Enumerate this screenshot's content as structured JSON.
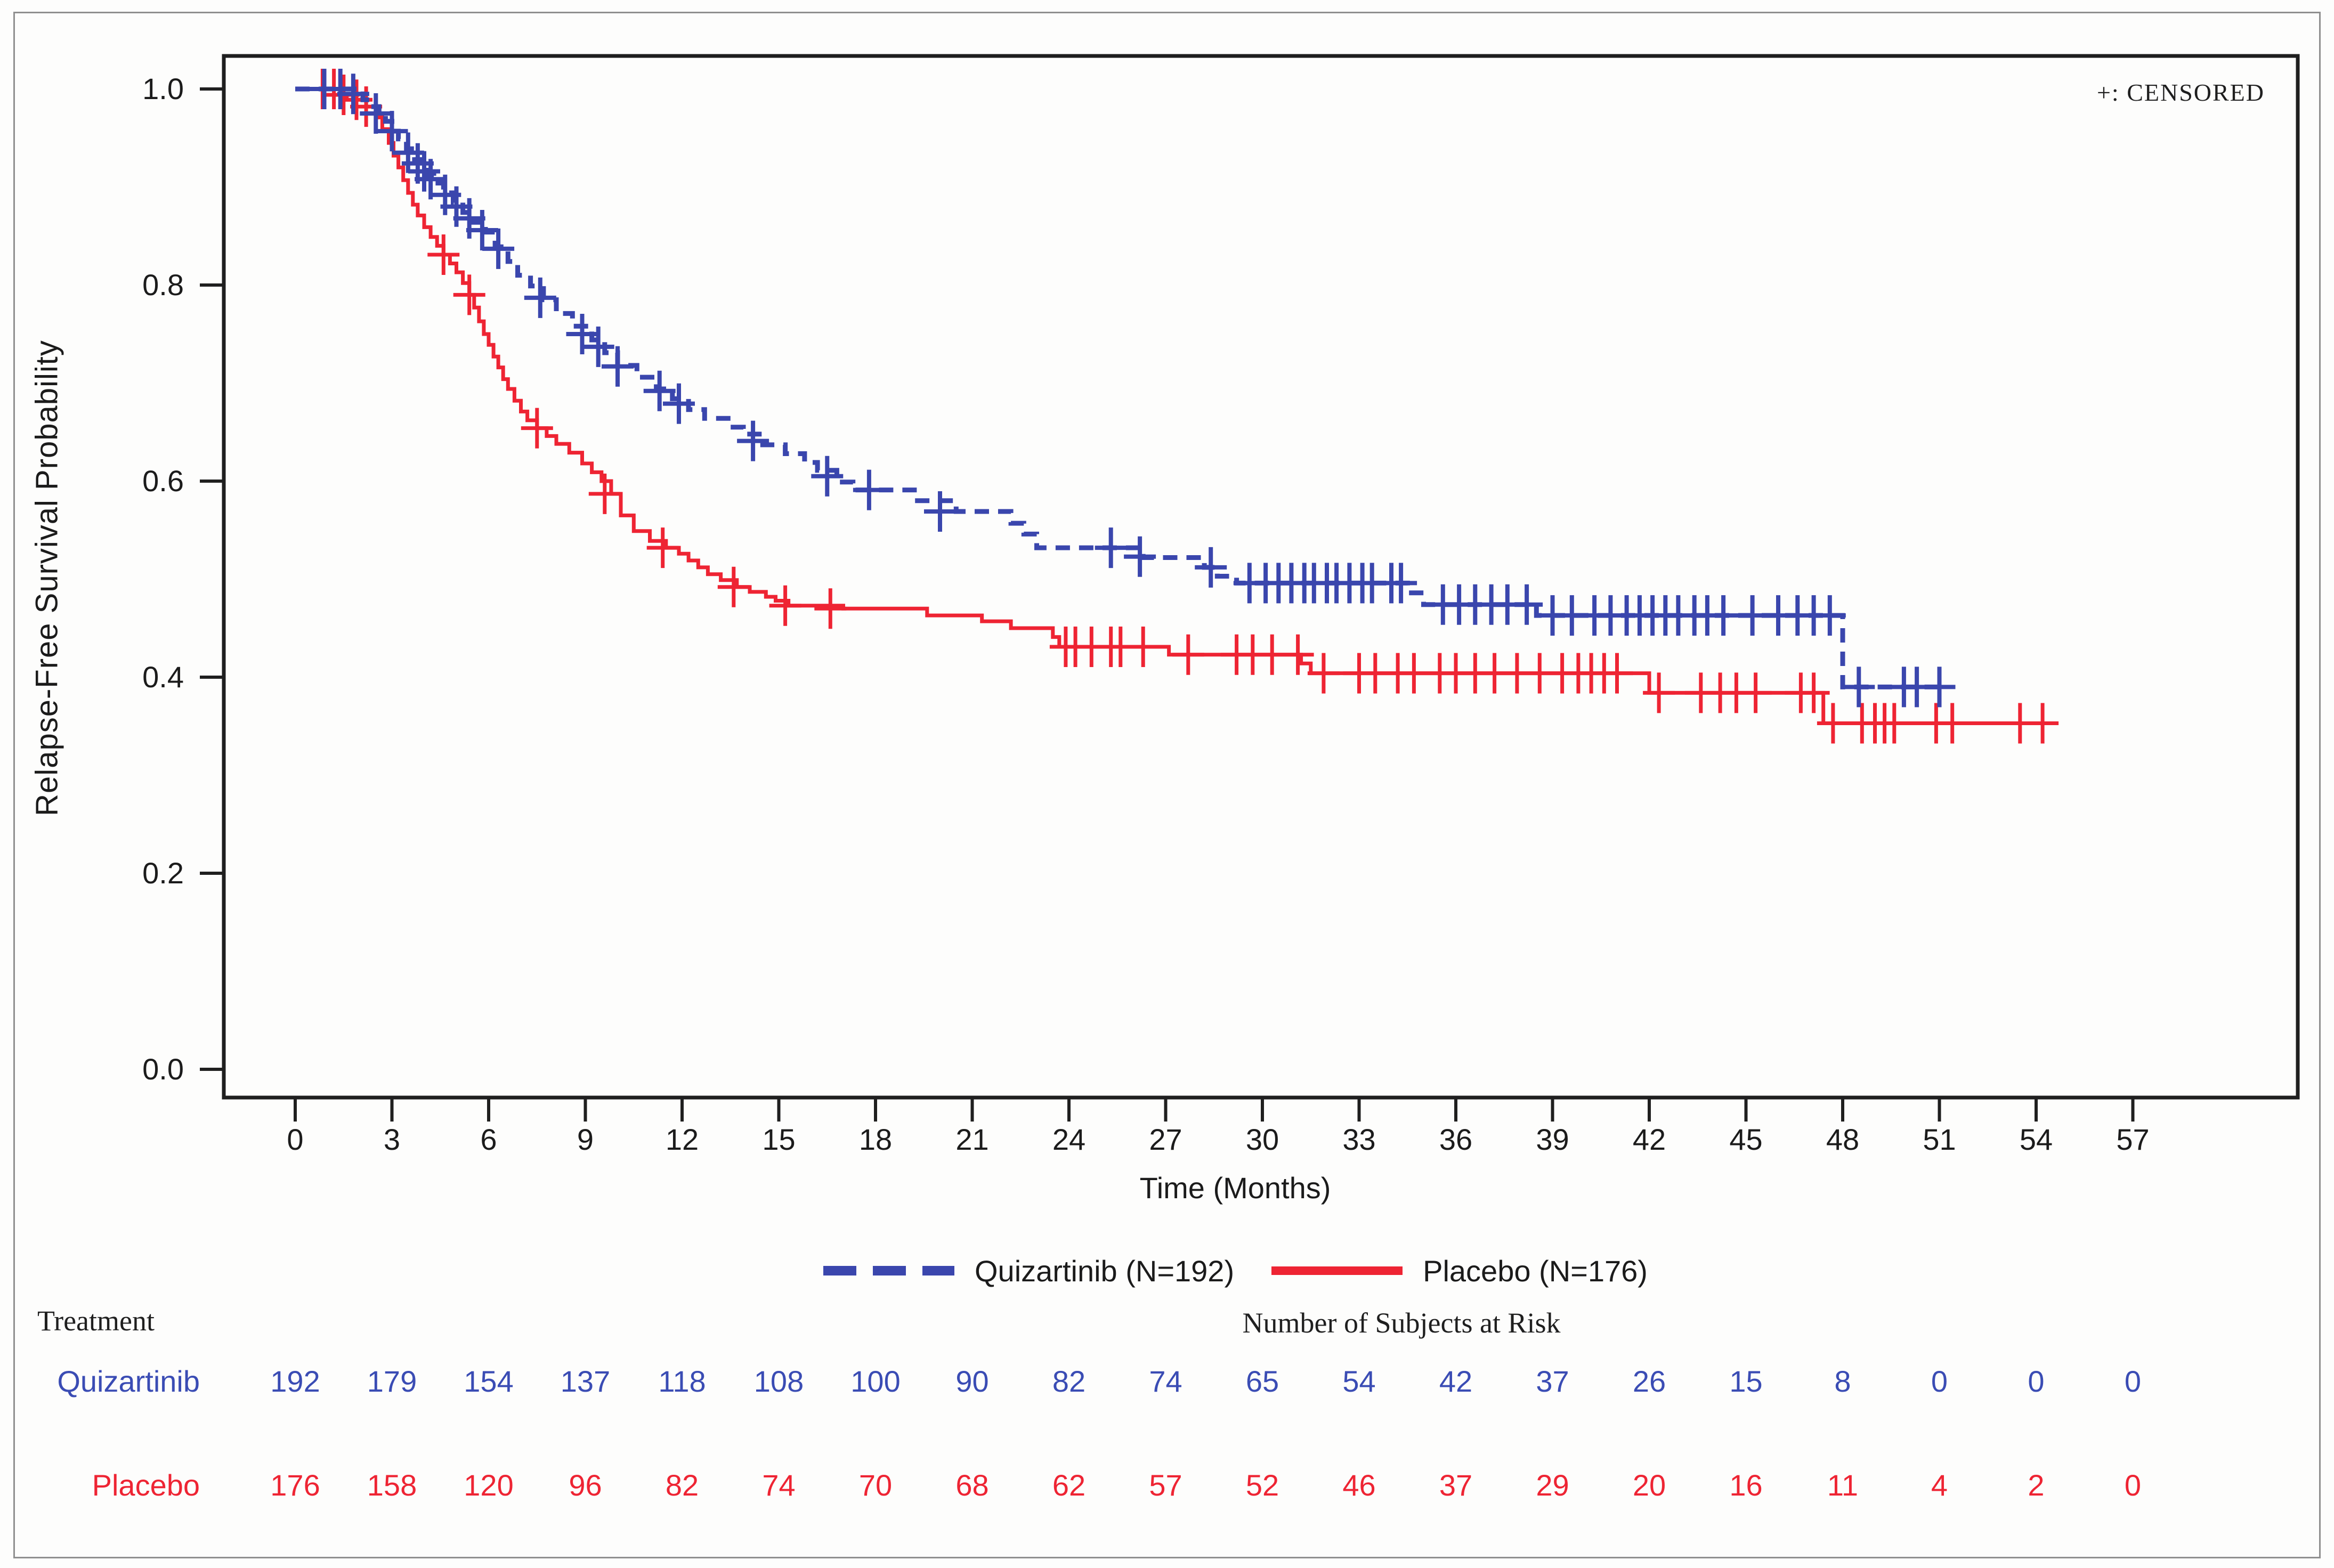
{
  "annotation": {
    "censored_note": "+: CENSORED"
  },
  "chart_data": {
    "type": "line",
    "subtype": "kaplan-meier-step-curves",
    "title": "",
    "xlabel": "Time (Months)",
    "ylabel": "Relapse-Free Survival Probability",
    "xlim": [
      0,
      57
    ],
    "ylim": [
      0.0,
      1.0
    ],
    "grid": false,
    "x_ticks": [
      0,
      3,
      6,
      9,
      12,
      15,
      18,
      21,
      24,
      27,
      30,
      33,
      36,
      39,
      42,
      45,
      48,
      51,
      54,
      57
    ],
    "y_tick_labels": [
      "1.0",
      "0.8",
      "0.6",
      "0.4",
      "0.2",
      "0.0"
    ],
    "y_tick_values": [
      1.0,
      0.8,
      0.6,
      0.4,
      0.2,
      0.0
    ],
    "legend_position": "bottom-center",
    "censored_marker": "+",
    "colors": {
      "quizartinib": "#3a46ad",
      "placebo": "#ee2433",
      "axis": "#1f1f1f"
    },
    "legend": [
      {
        "label": "Quizartinib (N=192)",
        "color": "#3a46ad",
        "dashed": true
      },
      {
        "label": "Placebo (N=176)",
        "color": "#ee2433",
        "dashed": false
      }
    ],
    "series": [
      {
        "name": "Quizartinib (N=192)",
        "n": 192,
        "color": "#3a46ad",
        "line_style": "dashed",
        "end_time": 51.2,
        "steps": [
          [
            0,
            1.0
          ],
          [
            1.9,
            0.995
          ],
          [
            2.1,
            0.989
          ],
          [
            2.35,
            0.982
          ],
          [
            2.6,
            0.975
          ],
          [
            2.8,
            0.967
          ],
          [
            3.0,
            0.957
          ],
          [
            3.2,
            0.949
          ],
          [
            3.45,
            0.939
          ],
          [
            3.7,
            0.928
          ],
          [
            3.9,
            0.92
          ],
          [
            4.1,
            0.912
          ],
          [
            4.3,
            0.904
          ],
          [
            4.6,
            0.894
          ],
          [
            4.9,
            0.884
          ],
          [
            5.2,
            0.874
          ],
          [
            5.5,
            0.864
          ],
          [
            5.9,
            0.854
          ],
          [
            6.2,
            0.839
          ],
          [
            6.6,
            0.824
          ],
          [
            6.9,
            0.81
          ],
          [
            7.3,
            0.799
          ],
          [
            7.7,
            0.785
          ],
          [
            8.1,
            0.771
          ],
          [
            8.6,
            0.758
          ],
          [
            9.2,
            0.744
          ],
          [
            9.6,
            0.731
          ],
          [
            10.0,
            0.718
          ],
          [
            10.6,
            0.706
          ],
          [
            11.2,
            0.694
          ],
          [
            11.7,
            0.684
          ],
          [
            12.2,
            0.673
          ],
          [
            12.7,
            0.664
          ],
          [
            13.5,
            0.655
          ],
          [
            13.9,
            0.648
          ],
          [
            14.5,
            0.637
          ],
          [
            15.2,
            0.628
          ],
          [
            15.8,
            0.619
          ],
          [
            16.2,
            0.611
          ],
          [
            16.8,
            0.599
          ],
          [
            17.3,
            0.591
          ],
          [
            19.3,
            0.58
          ],
          [
            20.5,
            0.569
          ],
          [
            22.2,
            0.557
          ],
          [
            22.6,
            0.546
          ],
          [
            23.0,
            0.532
          ],
          [
            26.3,
            0.522
          ],
          [
            28.2,
            0.512
          ],
          [
            28.6,
            0.503
          ],
          [
            29.2,
            0.496
          ],
          [
            34.5,
            0.486
          ],
          [
            35.0,
            0.474
          ],
          [
            38.5,
            0.463
          ],
          [
            48.0,
            0.39
          ]
        ],
        "censor_marks": [
          [
            0.9,
            1.0
          ],
          [
            1.4,
            1.0
          ],
          [
            1.8,
            0.995
          ],
          [
            2.5,
            0.975
          ],
          [
            3.0,
            0.957
          ],
          [
            3.5,
            0.935
          ],
          [
            3.8,
            0.924
          ],
          [
            4.0,
            0.916
          ],
          [
            4.2,
            0.908
          ],
          [
            4.65,
            0.892
          ],
          [
            5.0,
            0.88
          ],
          [
            5.4,
            0.868
          ],
          [
            5.8,
            0.856
          ],
          [
            6.3,
            0.837
          ],
          [
            7.6,
            0.787
          ],
          [
            8.9,
            0.75
          ],
          [
            9.4,
            0.737
          ],
          [
            10.0,
            0.717
          ],
          [
            11.3,
            0.692
          ],
          [
            11.9,
            0.679
          ],
          [
            14.2,
            0.641
          ],
          [
            16.5,
            0.605
          ],
          [
            17.8,
            0.591
          ],
          [
            20.0,
            0.569
          ],
          [
            25.3,
            0.532
          ],
          [
            26.2,
            0.523
          ],
          [
            28.4,
            0.512
          ],
          [
            29.6,
            0.496
          ],
          [
            30.1,
            0.496
          ],
          [
            30.5,
            0.496
          ],
          [
            30.9,
            0.496
          ],
          [
            31.3,
            0.496
          ],
          [
            31.6,
            0.496
          ],
          [
            32.0,
            0.496
          ],
          [
            32.3,
            0.496
          ],
          [
            32.7,
            0.496
          ],
          [
            33.1,
            0.496
          ],
          [
            33.4,
            0.496
          ],
          [
            34.0,
            0.496
          ],
          [
            34.3,
            0.496
          ],
          [
            35.6,
            0.474
          ],
          [
            36.1,
            0.474
          ],
          [
            36.6,
            0.474
          ],
          [
            37.1,
            0.474
          ],
          [
            37.6,
            0.474
          ],
          [
            38.2,
            0.474
          ],
          [
            39.0,
            0.463
          ],
          [
            39.6,
            0.463
          ],
          [
            40.3,
            0.463
          ],
          [
            40.8,
            0.463
          ],
          [
            41.3,
            0.463
          ],
          [
            41.7,
            0.463
          ],
          [
            42.1,
            0.463
          ],
          [
            42.5,
            0.463
          ],
          [
            42.9,
            0.463
          ],
          [
            43.4,
            0.463
          ],
          [
            43.8,
            0.463
          ],
          [
            44.3,
            0.463
          ],
          [
            45.2,
            0.463
          ],
          [
            46.0,
            0.463
          ],
          [
            46.6,
            0.463
          ],
          [
            47.1,
            0.463
          ],
          [
            47.6,
            0.463
          ],
          [
            48.5,
            0.39
          ],
          [
            49.9,
            0.39
          ],
          [
            50.3,
            0.39
          ],
          [
            51.0,
            0.39
          ]
        ]
      },
      {
        "name": "Placebo (N=176)",
        "n": 176,
        "color": "#ee2433",
        "line_style": "solid",
        "end_time": 54.3,
        "steps": [
          [
            0,
            1.0
          ],
          [
            0.9,
            0.994
          ],
          [
            1.6,
            0.989
          ],
          [
            2.2,
            0.982
          ],
          [
            2.5,
            0.971
          ],
          [
            2.7,
            0.959
          ],
          [
            2.9,
            0.945
          ],
          [
            3.05,
            0.932
          ],
          [
            3.2,
            0.92
          ],
          [
            3.35,
            0.907
          ],
          [
            3.5,
            0.894
          ],
          [
            3.65,
            0.882
          ],
          [
            3.8,
            0.871
          ],
          [
            4.0,
            0.859
          ],
          [
            4.2,
            0.849
          ],
          [
            4.4,
            0.84
          ],
          [
            4.6,
            0.831
          ],
          [
            4.8,
            0.822
          ],
          [
            5.0,
            0.813
          ],
          [
            5.2,
            0.802
          ],
          [
            5.4,
            0.79
          ],
          [
            5.55,
            0.777
          ],
          [
            5.7,
            0.763
          ],
          [
            5.85,
            0.75
          ],
          [
            6.0,
            0.739
          ],
          [
            6.15,
            0.727
          ],
          [
            6.3,
            0.716
          ],
          [
            6.45,
            0.704
          ],
          [
            6.6,
            0.694
          ],
          [
            6.8,
            0.682
          ],
          [
            7.0,
            0.671
          ],
          [
            7.2,
            0.662
          ],
          [
            7.5,
            0.654
          ],
          [
            7.8,
            0.646
          ],
          [
            8.1,
            0.638
          ],
          [
            8.5,
            0.629
          ],
          [
            8.9,
            0.618
          ],
          [
            9.2,
            0.609
          ],
          [
            9.5,
            0.6
          ],
          [
            9.8,
            0.587
          ],
          [
            10.1,
            0.565
          ],
          [
            10.5,
            0.549
          ],
          [
            11.0,
            0.539
          ],
          [
            11.5,
            0.532
          ],
          [
            11.9,
            0.526
          ],
          [
            12.2,
            0.519
          ],
          [
            12.5,
            0.512
          ],
          [
            12.8,
            0.505
          ],
          [
            13.2,
            0.499
          ],
          [
            13.7,
            0.492
          ],
          [
            14.1,
            0.487
          ],
          [
            14.6,
            0.482
          ],
          [
            14.9,
            0.478
          ],
          [
            15.3,
            0.473
          ],
          [
            17.0,
            0.47
          ],
          [
            19.6,
            0.463
          ],
          [
            21.3,
            0.457
          ],
          [
            22.2,
            0.45
          ],
          [
            23.5,
            0.441
          ],
          [
            23.7,
            0.431
          ],
          [
            27.1,
            0.423
          ],
          [
            31.2,
            0.414
          ],
          [
            31.5,
            0.404
          ],
          [
            42.0,
            0.384
          ],
          [
            47.4,
            0.353
          ]
        ],
        "censor_marks": [
          [
            0.85,
            1.0
          ],
          [
            1.2,
            1.0
          ],
          [
            1.5,
            0.994
          ],
          [
            1.9,
            0.989
          ],
          [
            2.2,
            0.982
          ],
          [
            4.6,
            0.831
          ],
          [
            5.4,
            0.79
          ],
          [
            7.5,
            0.654
          ],
          [
            9.6,
            0.587
          ],
          [
            11.4,
            0.532
          ],
          [
            13.6,
            0.492
          ],
          [
            15.2,
            0.473
          ],
          [
            16.6,
            0.47
          ],
          [
            23.9,
            0.431
          ],
          [
            24.2,
            0.431
          ],
          [
            24.7,
            0.431
          ],
          [
            25.3,
            0.431
          ],
          [
            25.6,
            0.431
          ],
          [
            26.3,
            0.431
          ],
          [
            27.7,
            0.423
          ],
          [
            29.2,
            0.423
          ],
          [
            29.7,
            0.423
          ],
          [
            30.3,
            0.423
          ],
          [
            31.1,
            0.423
          ],
          [
            31.9,
            0.404
          ],
          [
            33.0,
            0.404
          ],
          [
            33.5,
            0.404
          ],
          [
            34.2,
            0.404
          ],
          [
            34.7,
            0.404
          ],
          [
            35.5,
            0.404
          ],
          [
            36.0,
            0.404
          ],
          [
            36.6,
            0.404
          ],
          [
            37.2,
            0.404
          ],
          [
            37.9,
            0.404
          ],
          [
            38.6,
            0.404
          ],
          [
            39.3,
            0.404
          ],
          [
            39.8,
            0.404
          ],
          [
            40.2,
            0.404
          ],
          [
            40.6,
            0.404
          ],
          [
            41.0,
            0.404
          ],
          [
            42.3,
            0.384
          ],
          [
            43.6,
            0.384
          ],
          [
            44.2,
            0.384
          ],
          [
            44.7,
            0.384
          ],
          [
            45.3,
            0.384
          ],
          [
            46.7,
            0.384
          ],
          [
            47.1,
            0.384
          ],
          [
            47.7,
            0.353
          ],
          [
            48.6,
            0.353
          ],
          [
            49.0,
            0.353
          ],
          [
            49.3,
            0.353
          ],
          [
            49.6,
            0.353
          ],
          [
            50.9,
            0.353
          ],
          [
            51.4,
            0.353
          ],
          [
            53.5,
            0.353
          ],
          [
            54.2,
            0.353
          ]
        ]
      }
    ],
    "risk_table": {
      "header": "Treatment",
      "title": "Number of Subjects at Risk",
      "times": [
        0,
        3,
        6,
        9,
        12,
        15,
        18,
        21,
        24,
        27,
        30,
        33,
        36,
        39,
        42,
        45,
        48,
        51,
        54,
        57
      ],
      "rows": [
        {
          "label": "Quizartinib",
          "color": "#3a4cb4",
          "counts": [
            192,
            179,
            154,
            137,
            118,
            108,
            100,
            90,
            82,
            74,
            65,
            54,
            42,
            37,
            26,
            15,
            8,
            0,
            0,
            0
          ]
        },
        {
          "label": "Placebo",
          "color": "#ee2433",
          "counts": [
            176,
            158,
            120,
            96,
            82,
            74,
            70,
            68,
            62,
            57,
            52,
            46,
            37,
            29,
            20,
            16,
            11,
            4,
            2,
            0
          ]
        }
      ]
    }
  }
}
